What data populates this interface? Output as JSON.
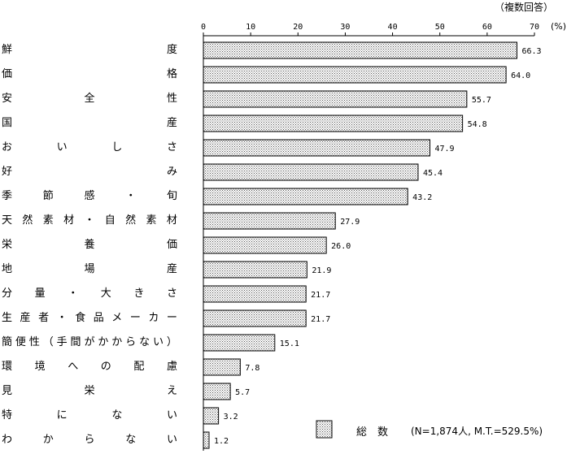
{
  "header": {
    "note": "（複数回答）"
  },
  "chart_data": {
    "type": "bar",
    "orientation": "horizontal",
    "unit": "(%)",
    "xlim": [
      0,
      70
    ],
    "ticks": [
      0,
      10,
      20,
      30,
      40,
      50,
      60,
      70
    ],
    "grid": false,
    "legend_position": "bottom-right",
    "categories": [
      "鮮度",
      "価格",
      "安全性",
      "国産",
      "おいしさ",
      "好み",
      "季節感・旬",
      "天然素材・自然素材",
      "栄養価",
      "地場産",
      "分量・大きさ",
      "生産者・食品メーカー",
      "簡便性（手間がかからない）",
      "環境への配慮",
      "見栄え",
      "特にない",
      "わからない"
    ],
    "value_labels": [
      "66.3",
      "64.0",
      "55.7",
      "54.8",
      "47.9",
      "45.4",
      "43.2",
      "27.9",
      "26.0",
      "21.9",
      "21.7",
      "21.7",
      "15.1",
      "7.8",
      "5.7",
      "3.2",
      "1.2"
    ],
    "series": [
      {
        "name": "総数",
        "values": [
          66.3,
          64.0,
          55.7,
          54.8,
          47.9,
          45.4,
          43.2,
          27.9,
          26.0,
          21.9,
          21.7,
          21.7,
          15.1,
          7.8,
          5.7,
          3.2,
          1.2
        ]
      }
    ],
    "legend": {
      "label": "総　数",
      "note": "(N=1,874人, M.T.=529.5%)"
    },
    "colors": {
      "bar_fill": "#ffffff",
      "bar_dots": "#555555",
      "bar_stroke": "#000000"
    }
  }
}
